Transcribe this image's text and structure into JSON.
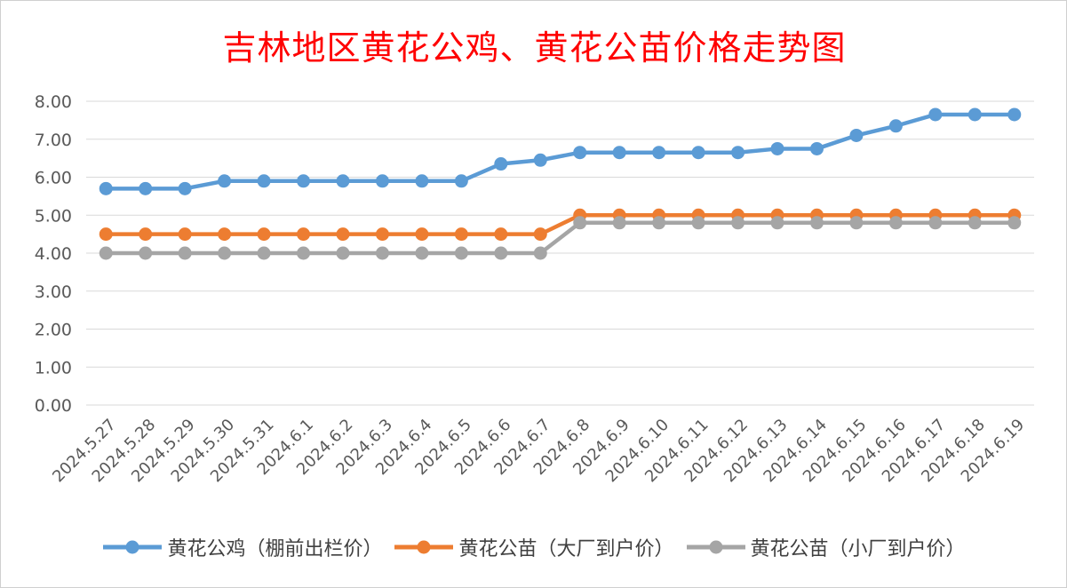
{
  "chart_data": {
    "type": "line",
    "title": "吉林地区黄花公鸡、黄花公苗价格走势图",
    "categories": [
      "2024.5.27",
      "2024.5.28",
      "2024.5.29",
      "2024.5.30",
      "2024.5.31",
      "2024.6.1",
      "2024.6.2",
      "2024.6.3",
      "2024.6.4",
      "2024.6.5",
      "2024.6.6",
      "2024.6.7",
      "2024.6.8",
      "2024.6.9",
      "2024.6.10",
      "2024.6.11",
      "2024.6.12",
      "2024.6.13",
      "2024.6.14",
      "2024.6.15",
      "2024.6.16",
      "2024.6.17",
      "2024.6.18",
      "2024.6.19"
    ],
    "ylim": [
      0,
      8
    ],
    "yticks": [
      "0.00",
      "1.00",
      "2.00",
      "3.00",
      "4.00",
      "5.00",
      "6.00",
      "7.00",
      "8.00"
    ],
    "grid": true,
    "legend_position": "bottom",
    "series": [
      {
        "name": "黄花公鸡（棚前出栏价）",
        "color": "#5b9bd5",
        "values": [
          5.7,
          5.7,
          5.7,
          5.9,
          5.9,
          5.9,
          5.9,
          5.9,
          5.9,
          5.9,
          6.35,
          6.45,
          6.65,
          6.65,
          6.65,
          6.65,
          6.65,
          6.75,
          6.75,
          7.1,
          7.35,
          7.65,
          7.65,
          7.65
        ]
      },
      {
        "name": "黄花公苗（大厂到户价）",
        "color": "#ed7d31",
        "values": [
          4.5,
          4.5,
          4.5,
          4.5,
          4.5,
          4.5,
          4.5,
          4.5,
          4.5,
          4.5,
          4.5,
          4.5,
          5.0,
          5.0,
          5.0,
          5.0,
          5.0,
          5.0,
          5.0,
          5.0,
          5.0,
          5.0,
          5.0,
          5.0
        ]
      },
      {
        "name": "黄花公苗（小厂到户价）",
        "color": "#a5a5a5",
        "values": [
          4.0,
          4.0,
          4.0,
          4.0,
          4.0,
          4.0,
          4.0,
          4.0,
          4.0,
          4.0,
          4.0,
          4.0,
          4.8,
          4.8,
          4.8,
          4.8,
          4.8,
          4.8,
          4.8,
          4.8,
          4.8,
          4.8,
          4.8,
          4.8
        ]
      }
    ]
  }
}
